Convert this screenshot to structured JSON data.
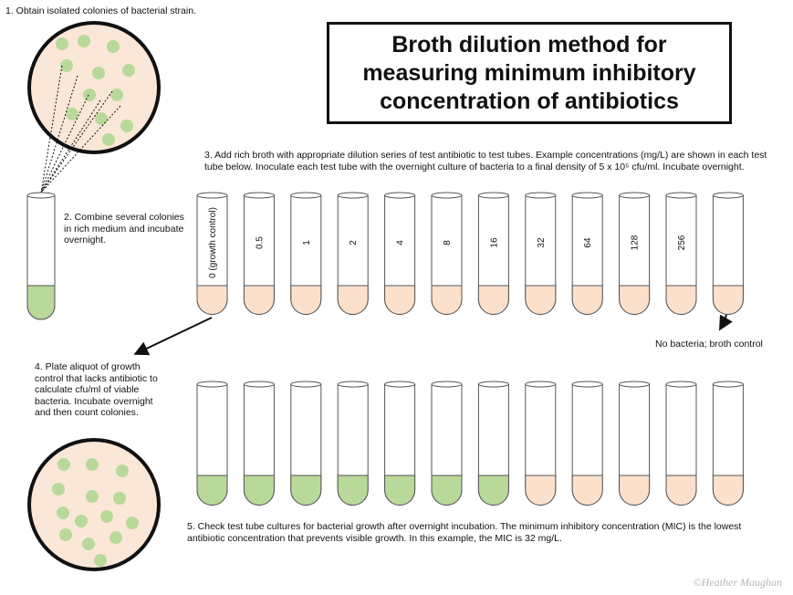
{
  "title": "Broth dilution method for\nmeasuring minimum inhibitory\nconcentration of antibiotics",
  "steps": {
    "step1": "1. Obtain isolated colonies of bacterial strain.",
    "step2": "2. Combine several colonies in rich medium and incubate overnight.",
    "step3": "3. Add rich broth with appropriate dilution series of test antibiotic to test tubes.  Example concentrations (mg/L) are shown in each test tube below.  Inoculate each test tube with the overnight culture of bacteria to a final density of 5 x 10⁵ cfu/ml. Incubate overnight.",
    "step4": "4. Plate aliquot of growth control that lacks antibiotic to calculate cfu/ml of viable bacteria. Incubate overnight and then count colonies.",
    "step5": "5. Check test tube cultures for bacterial growth after overnight incubation.  The minimum inhibitory concentration (MIC) is the lowest antibiotic concentration that prevents visible growth. In this example, the MIC is 32 mg/L."
  },
  "broth_control_label": "No bacteria; broth control",
  "tube_concentrations": [
    "0 (growth control)",
    "0.5",
    "1",
    "2",
    "4",
    "8",
    "16",
    "32",
    "64",
    "128",
    "256",
    ""
  ],
  "result_growth": [
    true,
    true,
    true,
    true,
    true,
    true,
    true,
    false,
    false,
    false,
    false,
    false
  ],
  "credit": "©Heather Maughan",
  "colors": {
    "bacteria_green": "#b9d99a",
    "broth_peach": "#fbe0cc",
    "plate_fill": "#fbe7d8",
    "colony_green": "#b9d99a"
  }
}
